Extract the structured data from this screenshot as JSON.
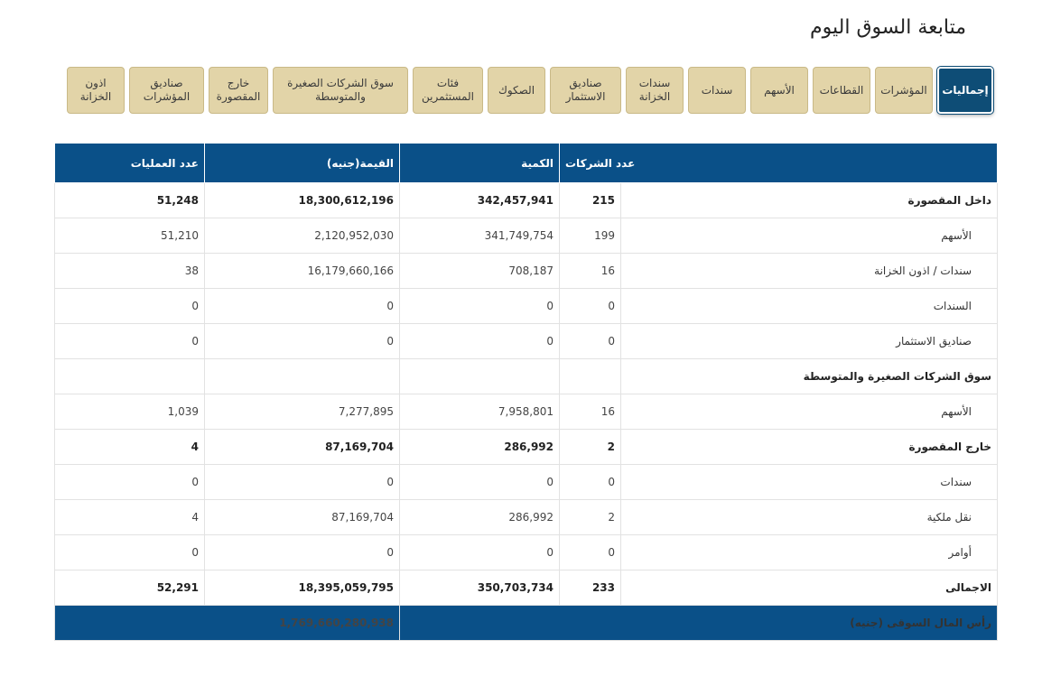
{
  "page": {
    "title": "متابعة السوق اليوم"
  },
  "tabs": [
    {
      "label": "إجماليات",
      "active": true
    },
    {
      "label": "المؤشرات",
      "active": false
    },
    {
      "label": "القطاعات",
      "active": false
    },
    {
      "label": "الأسهم",
      "active": false
    },
    {
      "label": "سندات",
      "active": false
    },
    {
      "label": "سندات\nالخزانة",
      "active": false
    },
    {
      "label": "صناديق\nالاستثمار",
      "active": false
    },
    {
      "label": "الصكوك",
      "active": false
    },
    {
      "label": "فئات\nالمستثمرين",
      "active": false
    },
    {
      "label": "سوق الشركات الصغيرة\nوالمتوسطة",
      "active": false
    },
    {
      "label": "خارج\nالمقصورة",
      "active": false
    },
    {
      "label": "صناديق\nالمؤشرات",
      "active": false
    },
    {
      "label": "اذون\nالخزانة",
      "active": false
    }
  ],
  "table": {
    "headers": {
      "companies": "عدد الشركات",
      "quantity": "الكمية",
      "value": "القيمة(جنيه)",
      "trades": "عدد العمليات"
    },
    "rows": [
      {
        "label": "داخل المقصورة",
        "companies": "215",
        "quantity": "342,457,941",
        "value": "18,300,612,196",
        "trades": "51,248",
        "bold": true,
        "indent": false
      },
      {
        "label": "الأسهم",
        "companies": "199",
        "quantity": "341,749,754",
        "value": "2,120,952,030",
        "trades": "51,210",
        "bold": false,
        "indent": true
      },
      {
        "label": "سندات / اذون الخزانة",
        "companies": "16",
        "quantity": "708,187",
        "value": "16,179,660,166",
        "trades": "38",
        "bold": false,
        "indent": true
      },
      {
        "label": "السندات",
        "companies": "0",
        "quantity": "0",
        "value": "0",
        "trades": "0",
        "bold": false,
        "indent": true
      },
      {
        "label": "صناديق الاستثمار",
        "companies": "0",
        "quantity": "0",
        "value": "0",
        "trades": "0",
        "bold": false,
        "indent": true
      },
      {
        "label": "سوق الشركات الصغيرة والمتوسطة",
        "companies": "",
        "quantity": "",
        "value": "",
        "trades": "",
        "bold": true,
        "indent": false
      },
      {
        "label": "الأسهم",
        "companies": "16",
        "quantity": "7,958,801",
        "value": "7,277,895",
        "trades": "1,039",
        "bold": false,
        "indent": true
      },
      {
        "label": "خارج المقصورة",
        "companies": "2",
        "quantity": "286,992",
        "value": "87,169,704",
        "trades": "4",
        "bold": true,
        "indent": false
      },
      {
        "label": "سندات",
        "companies": "0",
        "quantity": "0",
        "value": "0",
        "trades": "0",
        "bold": false,
        "indent": true
      },
      {
        "label": "نقل ملكية",
        "companies": "2",
        "quantity": "286,992",
        "value": "87,169,704",
        "trades": "4",
        "bold": false,
        "indent": true
      },
      {
        "label": "أوامر",
        "companies": "0",
        "quantity": "0",
        "value": "0",
        "trades": "0",
        "bold": false,
        "indent": true
      },
      {
        "label": "الاجمالى",
        "companies": "233",
        "quantity": "350,703,734",
        "value": "18,395,059,795",
        "trades": "52,291",
        "bold": true,
        "indent": false
      }
    ],
    "footer": {
      "label": "رأس المال السوقى (جنيه)",
      "value": "1,769,660,280,938"
    }
  },
  "colors": {
    "header_blue": "#0a5088",
    "tab_beige": "#e2d4a8",
    "tab_active": "#0e4d76"
  }
}
